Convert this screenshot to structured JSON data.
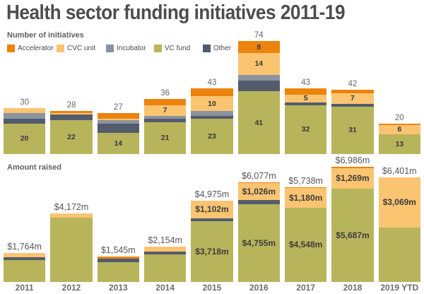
{
  "title": "Health sector funding initiatives 2011-19",
  "colors": {
    "accelerator": "#EC830D",
    "cvc_unit": "#FAC471",
    "incubator": "#8B93A1",
    "vc_fund": "#B8B45C",
    "other": "#535C6C",
    "title_text": "#4D4D4D"
  },
  "legend": {
    "items": [
      {
        "label": "Accelerator",
        "key": "accelerator"
      },
      {
        "label": "CVC unit",
        "key": "cvc_unit"
      },
      {
        "label": "Incubator",
        "key": "incubator"
      },
      {
        "label": "VC fund",
        "key": "vc_fund"
      },
      {
        "label": "Other",
        "key": "other"
      }
    ]
  },
  "chart_data": [
    {
      "type": "bar",
      "stacked": true,
      "title": "Number of initiatives",
      "categories": [
        "2011",
        "2012",
        "2013",
        "2014",
        "2015",
        "2016",
        "2017",
        "2018",
        "2019 YTD"
      ],
      "ylim": [
        0,
        74
      ],
      "grid": false,
      "legend_position": "top-left",
      "totals": [
        30,
        28,
        27,
        36,
        43,
        74,
        43,
        42,
        20
      ],
      "total_labels": [
        "30",
        "28",
        "27",
        "36",
        "43",
        "74",
        "43",
        "42",
        "20"
      ],
      "series": [
        {
          "name": "VC fund",
          "key": "vc_fund",
          "values": [
            20,
            22,
            14,
            21,
            23,
            41,
            32,
            31,
            13
          ],
          "labels": [
            "20",
            "22",
            "14",
            "21",
            "23",
            "41",
            "32",
            "31",
            "13"
          ]
        },
        {
          "name": "Other",
          "key": "other",
          "values": [
            3,
            4,
            6,
            2,
            2,
            7,
            2,
            2,
            0
          ],
          "labels": [
            null,
            null,
            null,
            null,
            null,
            null,
            null,
            null,
            null
          ]
        },
        {
          "name": "Incubator",
          "key": "incubator",
          "values": [
            4,
            0,
            2,
            2,
            3,
            4,
            0,
            0,
            0
          ],
          "labels": [
            null,
            null,
            null,
            null,
            null,
            null,
            null,
            null,
            null
          ]
        },
        {
          "name": "CVC unit",
          "key": "cvc_unit",
          "values": [
            3,
            1,
            1,
            7,
            10,
            14,
            5,
            7,
            6
          ],
          "labels": [
            null,
            null,
            null,
            "7",
            "10",
            "14",
            "5",
            "7",
            "6"
          ]
        },
        {
          "name": "Accelerator",
          "key": "accelerator",
          "values": [
            0,
            1,
            4,
            4,
            5,
            8,
            4,
            2,
            1
          ],
          "labels": [
            null,
            null,
            null,
            null,
            null,
            "8",
            null,
            null,
            null
          ]
        }
      ]
    },
    {
      "type": "bar",
      "stacked": true,
      "title": "Amount raised",
      "categories": [
        "2011",
        "2012",
        "2013",
        "2014",
        "2015",
        "2016",
        "2017",
        "2018",
        "2019 YTD"
      ],
      "ylim": [
        0,
        6986
      ],
      "grid": false,
      "unit": "$m",
      "totals": [
        1764,
        4172,
        1545,
        2154,
        4975,
        6077,
        5738,
        6986,
        6401
      ],
      "total_labels": [
        "$1,764m",
        "$4,172m",
        "$1,545m",
        "$2,154m",
        "$4,975m",
        "$6,077m",
        "$5,738m",
        "$6,986m",
        "$6,401m"
      ],
      "series": [
        {
          "name": "VC fund",
          "key": "vc_fund",
          "values": [
            1358,
            3925,
            1205,
            1689,
            3718,
            4755,
            4548,
            5687,
            3332
          ],
          "labels": [
            null,
            null,
            null,
            null,
            "$3,718m",
            "$4,755m",
            "$4,548m",
            "$5,687m",
            null
          ]
        },
        {
          "name": "Other",
          "key": "other",
          "values": [
            140,
            0,
            233,
            155,
            155,
            240,
            0,
            0,
            0
          ],
          "labels": [
            null,
            null,
            null,
            null,
            null,
            null,
            null,
            null,
            null
          ]
        },
        {
          "name": "CVC unit",
          "key": "cvc_unit",
          "values": [
            266,
            247,
            0,
            310,
            1102,
            1026,
            1180,
            1269,
            3069
          ],
          "labels": [
            null,
            null,
            null,
            null,
            "$1,102m",
            "$1,026m",
            "$1,180m",
            "$1,269m",
            "$3,069m"
          ]
        },
        {
          "name": "Accelerator",
          "key": "accelerator",
          "values": [
            0,
            0,
            107,
            0,
            0,
            56,
            10,
            30,
            0
          ],
          "labels": [
            null,
            null,
            null,
            null,
            null,
            null,
            null,
            null,
            null
          ]
        }
      ]
    }
  ]
}
